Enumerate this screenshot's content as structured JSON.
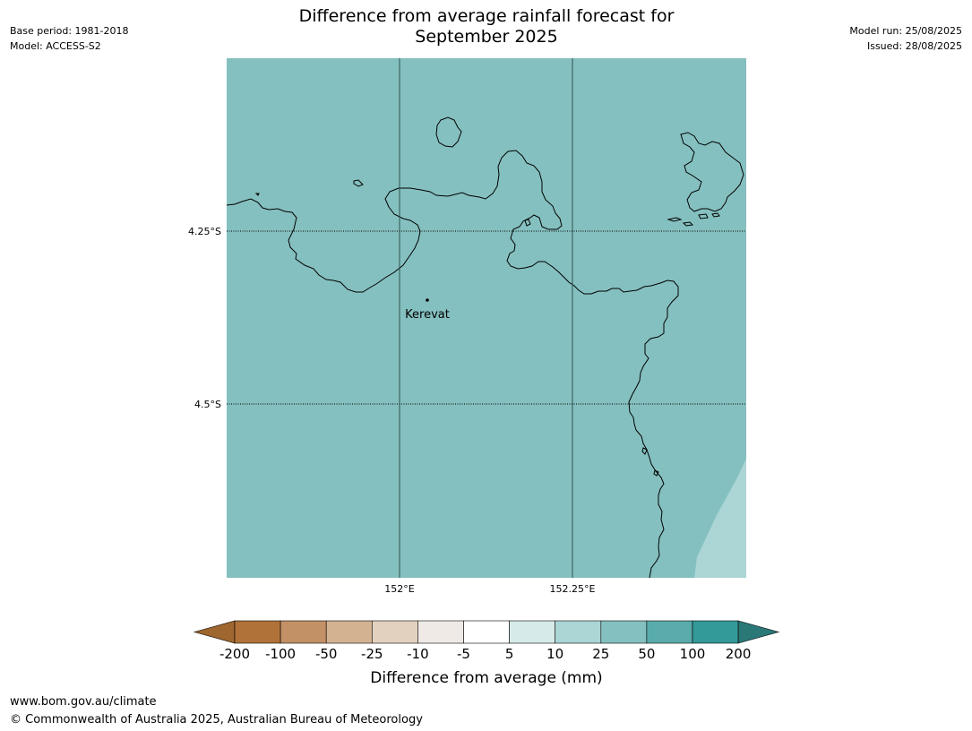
{
  "header": {
    "title_line1": "Difference from average rainfall forecast for",
    "title_line2": "September 2025",
    "base_period": "Base period: 1981-2018",
    "model": "Model: ACCESS-S2",
    "model_run": "Model run: 25/08/2025",
    "issued": "Issued: 28/08/2025"
  },
  "map": {
    "lat_labels": [
      "4.25°S",
      "4.5°S"
    ],
    "lon_labels": [
      "152°E",
      "152.25°E"
    ],
    "place": {
      "name": "Kerevat"
    },
    "fill_category": "50",
    "colors": {
      "main_fill": "#85c0c0",
      "secondary_fill": "#acd5d5",
      "coast": "#000000",
      "gridline": "#2f4f4f"
    }
  },
  "legend": {
    "title": "Difference from average (mm)",
    "tick_labels": [
      "-200",
      "-100",
      "-50",
      "-25",
      "-10",
      "-5",
      "5",
      "10",
      "25",
      "50",
      "100",
      "200"
    ],
    "colors": [
      "#a0662f",
      "#b07238",
      "#c29166",
      "#d3b291",
      "#e3d1bf",
      "#efeae6",
      "#ffffff",
      "#d7eaea",
      "#acd5d5",
      "#85c0c0",
      "#5aabab",
      "#339999",
      "#2b7878"
    ]
  },
  "footer": {
    "url": "www.bom.gov.au/climate",
    "copyright": "© Commonwealth of Australia 2025, Australian Bureau of Meteorology"
  }
}
